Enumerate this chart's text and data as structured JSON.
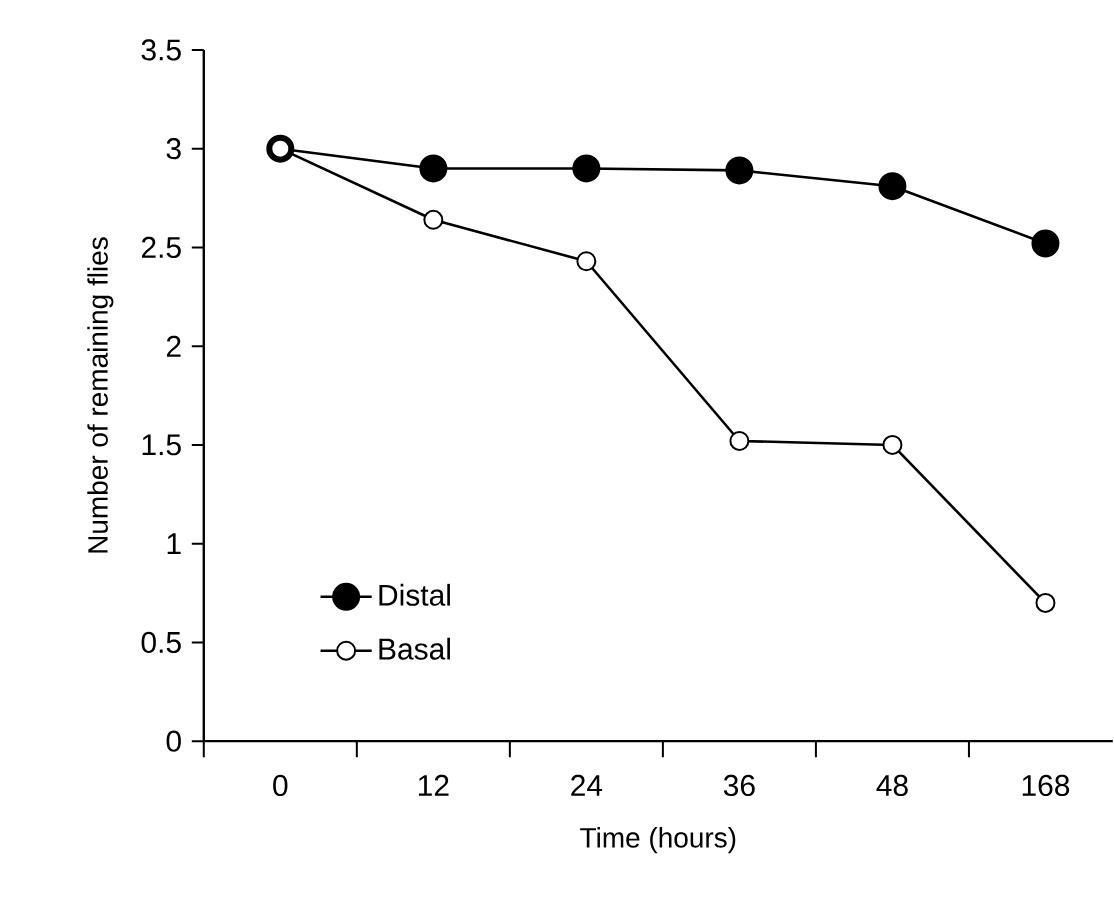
{
  "chart_data": {
    "type": "line",
    "xlabel": "Time (hours)",
    "ylabel": "Number of remaining flies",
    "categories": [
      "0",
      "12",
      "24",
      "36",
      "48",
      "168"
    ],
    "series": [
      {
        "name": "Distal",
        "color": "#000000",
        "values": [
          3.0,
          2.9,
          2.9,
          2.89,
          2.81,
          2.52
        ]
      },
      {
        "name": "Basal",
        "color": "#000000",
        "values": [
          3.0,
          2.64,
          2.43,
          1.52,
          1.5,
          0.7
        ]
      }
    ],
    "ylim": [
      0,
      3.5
    ],
    "yticks": [
      0,
      0.5,
      1,
      1.5,
      2,
      2.5,
      3,
      3.5
    ],
    "marker": "circle",
    "line_style": "solid",
    "legend": "bottom left",
    "grid": false
  }
}
